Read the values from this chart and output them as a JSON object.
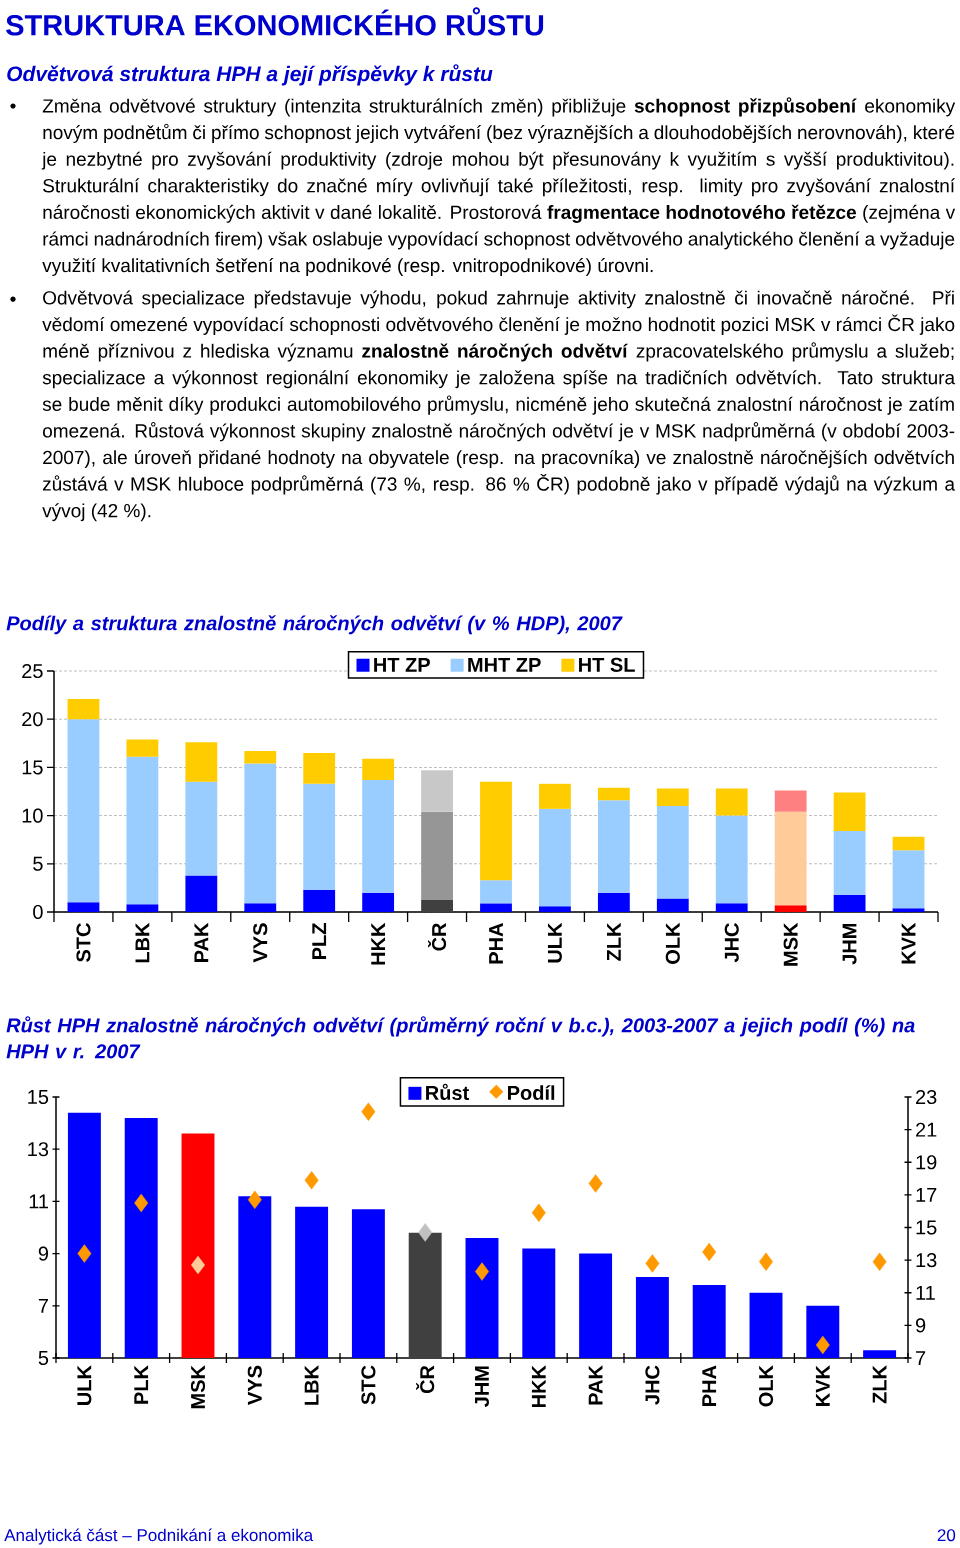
{
  "chart_data": [
    {
      "type": "other",
      "title": "STRUKTURA EKONOMICKÉHO RŮSTU",
      "subtitle": "Odvětvová struktura HPH a její příspěvky k růstu",
      "annotations": [
        "Změna odvětvové struktury (intenzita strukturálních změn) přibližuje **schopnost přizpůsobení** ekonomiky novým podnětům či přímo schopnost jejich vytváření (bez výraznějších a dlouhodobějších nerovnováh), které je nezbytné pro zvyšování produktivity (zdroje mohou být přesunovány k využitím s vyšší produktivitou). Strukturální charakteristiky do značné míry ovlivňují také příležitosti, resp. limity pro zvyšování znalostní náročnosti ekonomických aktivit v dané lokalitě. Prostorová **fragmentace hodnotového řetězce** (zejména v rámci nadnárodních firem) však oslabuje vypovídací schopnost odvětvového analytického členění a vyžaduje využití kvalitativních šetření na podnikové (resp. vnitropodnikové) úrovni.",
        "Odvětvová specializace představuje výhodu, pokud zahrnuje aktivity znalostně či inovačně náročné. Při vědomí omezené vypovídací schopnosti odvětvového členění je možno hodnotit pozici MSK v rámci ČR jako méně příznivou z hlediska významu **znalostně náročných odvětví** zpracovatelského průmyslu a služeb; specializace a výkonnost regionální ekonomiky je založena spíše na tradičních odvětvích. Tato struktura se bude měnit díky produkci automobilového průmyslu, nicméně jeho skutečná znalostní náročnost je zatím omezená. Růstová výkonnost skupiny znalostně náročných odvětví je v MSK nadprůměrná (v období 2003-2007), ale úroveň přidané hodnoty na obyvatele (resp. na pracovníka) ve znalostně náročnějších odvětvích zůstává v MSK hluboce podprůměrná (73 %, resp. 86 % ČR) podobně jako v případě výdajů na výzkum a vývoj (42 %)."
      ]
    },
    {
      "type": "bar",
      "title": "Podíly a struktura znalostně náročných odvětví (v % HDP), 2007",
      "stacked": true,
      "grid": "y",
      "legend": "top",
      "categories": [
        "STC",
        "LBK",
        "PAK",
        "VYS",
        "PLZ",
        "HKK",
        "ČR",
        "PHA",
        "ULK",
        "ZLK",
        "OLK",
        "JHC",
        "MSK",
        "JHM",
        "KVK"
      ],
      "ylim": [
        0,
        25
      ],
      "yticks": [
        0,
        5,
        10,
        15,
        20,
        25
      ],
      "series": [
        {
          "name": "HT ZP",
          "color": "#0000ff",
          "colors": [
            "#0000ff",
            "#0000ff",
            "#0000ff",
            "#0000ff",
            "#0000ff",
            "#0000ff",
            "#404040",
            "#0000ff",
            "#0000ff",
            "#0000ff",
            "#0000ff",
            "#0000ff",
            "#ff0000",
            "#0000ff",
            "#0000ff"
          ],
          "values": [
            1.0,
            0.8,
            3.8,
            0.9,
            2.3,
            2.0,
            1.3,
            0.9,
            0.6,
            2.0,
            1.4,
            0.9,
            0.7,
            1.8,
            0.4
          ]
        },
        {
          "name": "MHT ZP",
          "color": "#99ccff",
          "colors": [
            "#99ccff",
            "#99ccff",
            "#99ccff",
            "#99ccff",
            "#99ccff",
            "#99ccff",
            "#969696",
            "#99ccff",
            "#99ccff",
            "#99ccff",
            "#99ccff",
            "#99ccff",
            "#ffcc99",
            "#99ccff",
            "#99ccff"
          ],
          "values": [
            19.0,
            15.3,
            9.7,
            14.5,
            11.0,
            11.7,
            9.1,
            2.4,
            10.1,
            9.6,
            9.6,
            9.1,
            9.7,
            6.6,
            6.0
          ]
        },
        {
          "name": "HT SL",
          "color": "#ffcc00",
          "colors": [
            "#ffcc00",
            "#ffcc00",
            "#ffcc00",
            "#ffcc00",
            "#ffcc00",
            "#ffcc00",
            "#c8c8c8",
            "#ffcc00",
            "#ffcc00",
            "#ffcc00",
            "#ffcc00",
            "#ffcc00",
            "#ff8080",
            "#ffcc00",
            "#ffcc00"
          ],
          "values": [
            2.1,
            1.8,
            4.1,
            1.3,
            3.2,
            2.2,
            4.3,
            10.2,
            2.6,
            1.3,
            1.8,
            2.8,
            2.2,
            4.0,
            1.4
          ]
        }
      ]
    },
    {
      "type": "bar",
      "title": "Růst HPH znalostně náročných odvětví (průměrný roční v b.c.), 2003-2007 a jejich podíl (%) na HPH v r. 2007",
      "legend": "top",
      "categories": [
        "ULK",
        "PLK",
        "MSK",
        "VYS",
        "LBK",
        "STC",
        "ČR",
        "JHM",
        "HKK",
        "PAK",
        "JHC",
        "PHA",
        "OLK",
        "KVK",
        "ZLK"
      ],
      "ylim": [
        5,
        15
      ],
      "yticks": [
        5,
        7,
        9,
        11,
        13,
        15
      ],
      "y2lim": [
        7,
        23
      ],
      "y2ticks": [
        7,
        9,
        11,
        13,
        15,
        17,
        19,
        21,
        23
      ],
      "series": [
        {
          "name": "Růst",
          "type": "bar",
          "color": "#0000ff",
          "colors": [
            "#0000ff",
            "#0000ff",
            "#ff0000",
            "#0000ff",
            "#0000ff",
            "#0000ff",
            "#404040",
            "#0000ff",
            "#0000ff",
            "#0000ff",
            "#0000ff",
            "#0000ff",
            "#0000ff",
            "#0000ff",
            "#0000ff"
          ],
          "values": [
            14.4,
            14.2,
            13.6,
            11.2,
            10.8,
            10.7,
            9.8,
            9.6,
            9.2,
            9.0,
            8.1,
            7.8,
            7.5,
            7.0,
            5.3
          ]
        },
        {
          "name": "Podíl",
          "type": "scatter",
          "axis": "y2",
          "marker": "diamond",
          "color": "#ff9900",
          "colors": [
            "#ff9900",
            "#ff9900",
            "#ffcc99",
            "#ff9900",
            "#ff9900",
            "#ff9900",
            "#c0c0c0",
            "#ff9900",
            "#ff9900",
            "#ff9900",
            "#ff9900",
            "#ff9900",
            "#ff9900",
            "#ff9900",
            "#ff9900"
          ],
          "values": [
            13.4,
            16.5,
            12.7,
            16.7,
            17.9,
            22.1,
            14.7,
            12.3,
            15.9,
            17.7,
            12.8,
            13.5,
            12.9,
            7.8,
            12.9
          ]
        }
      ],
      "annotations": [
        "Analytická část – Podnikání a ekonomika",
        "20"
      ]
    }
  ]
}
